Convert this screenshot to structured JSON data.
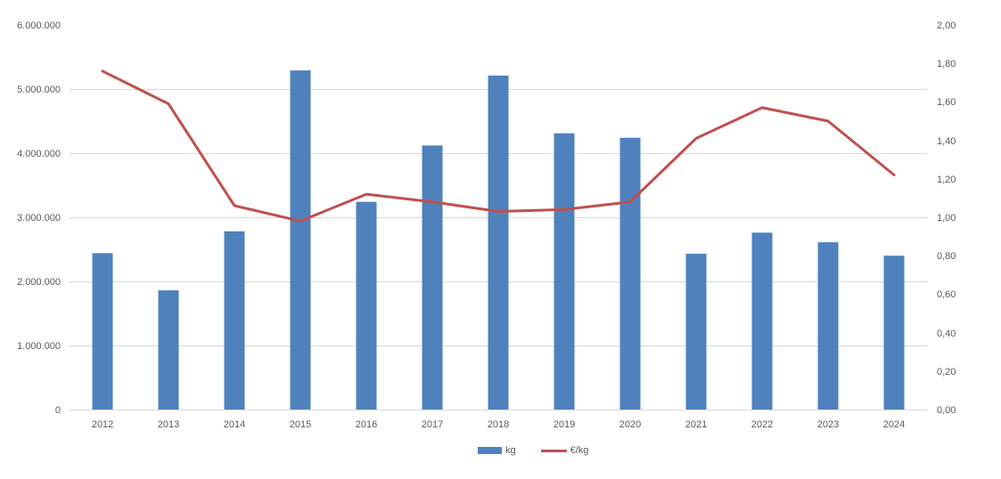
{
  "chart_data": {
    "type": "combo-bar-line",
    "title": "",
    "categories": [
      "2012",
      "2013",
      "2014",
      "2015",
      "2016",
      "2017",
      "2018",
      "2019",
      "2020",
      "2021",
      "2022",
      "2023",
      "2024"
    ],
    "series": [
      {
        "name": "kg",
        "type": "bar",
        "axis": "left",
        "color": "#4f81bd",
        "values": [
          2440000,
          1860000,
          2780000,
          5290000,
          3240000,
          4120000,
          5210000,
          4310000,
          4240000,
          2430000,
          2760000,
          2610000,
          2400000
        ]
      },
      {
        "name": "€/kg",
        "type": "line",
        "axis": "right",
        "color": "#c0504d",
        "values": [
          1.76,
          1.59,
          1.06,
          0.98,
          1.12,
          1.08,
          1.03,
          1.04,
          1.08,
          1.41,
          1.57,
          1.5,
          1.22
        ]
      }
    ],
    "left_axis": {
      "min": 0,
      "max": 6000000,
      "tick_labels_top_to_bottom": [
        "6.000.000",
        "5.000.000",
        "4.000.000",
        "3.000.000",
        "2.000.000",
        "1.000.000",
        "0"
      ]
    },
    "right_axis": {
      "min": 0,
      "max": 2,
      "tick_labels_top_to_bottom": [
        "2,00",
        "1,80",
        "1,60",
        "1,40",
        "1,20",
        "1,00",
        "0,80",
        "0,60",
        "0,40",
        "0,20",
        "0,00"
      ]
    },
    "grid": true,
    "legend_position": "bottom",
    "legend": [
      "kg",
      "€/kg"
    ],
    "colors": {
      "grid": "#d9d9d9",
      "axis_text": "#595959",
      "background": "#ffffff"
    }
  }
}
